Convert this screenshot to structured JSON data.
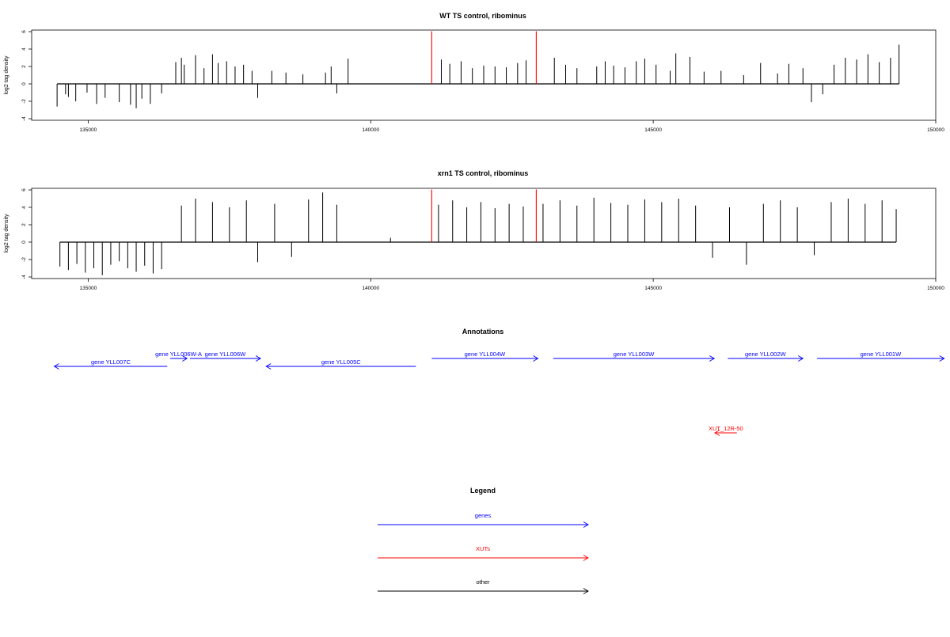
{
  "colors": {
    "gene": "#0000ff",
    "xut": "#ff0000",
    "other": "#000000",
    "bars": "#000000",
    "marker": "#ff0000"
  },
  "chart_data": [
    {
      "type": "bar",
      "title": "WT TS control, ribominus",
      "ylabel": "log2 tag density",
      "xlim": [
        134000,
        150000
      ],
      "ylim": [
        -4,
        6
      ],
      "x_ticks": [
        "135000",
        "140000",
        "145000",
        "150000"
      ],
      "y_ticks": [
        "-4",
        "-2",
        "0",
        "2",
        "4",
        "6"
      ],
      "marker_positions": [
        141080,
        142930
      ],
      "grid": false,
      "series": [
        {
          "x": [
            134450,
            134600,
            134650,
            134780,
            134980,
            135150,
            135300,
            135550,
            135750,
            135850,
            135950,
            136100,
            136300,
            136550,
            136650,
            136700,
            136900,
            137050,
            137200,
            137300,
            137450,
            137600,
            137750,
            137900,
            138000,
            138250,
            138500,
            138800,
            139200,
            139300,
            139400,
            139600,
            141250,
            141400,
            141600,
            141800,
            142000,
            142200,
            142400,
            142600,
            142750,
            143250,
            143450,
            143650,
            144000,
            144150,
            144300,
            144500,
            144700,
            144850,
            145050,
            145300,
            145400,
            145650,
            145900,
            146200,
            146600,
            146900,
            147200,
            147400,
            147650,
            147800,
            148000,
            148200,
            148400,
            148600,
            148800,
            149000,
            149200,
            149350
          ],
          "y": [
            -2.6,
            -1.2,
            -1.5,
            -2.0,
            -1.0,
            -2.3,
            -1.6,
            -2.1,
            -2.4,
            -2.8,
            -1.7,
            -2.3,
            -1.1,
            2.5,
            3.0,
            2.2,
            3.3,
            1.8,
            3.4,
            2.4,
            2.6,
            2.0,
            2.2,
            1.5,
            -1.6,
            1.5,
            1.3,
            1.1,
            1.3,
            2.0,
            -1.1,
            2.9,
            2.8,
            2.3,
            2.6,
            1.8,
            2.1,
            2.0,
            1.9,
            2.4,
            2.7,
            3.0,
            2.2,
            1.8,
            2.0,
            2.6,
            2.1,
            1.9,
            2.6,
            2.9,
            2.2,
            1.5,
            3.5,
            3.1,
            1.4,
            1.5,
            1.0,
            2.4,
            1.2,
            2.3,
            1.8,
            -2.1,
            -1.2,
            2.2,
            3.0,
            2.8,
            3.4,
            2.5,
            3.0,
            4.5
          ]
        }
      ]
    },
    {
      "type": "bar",
      "title": "xrn1 TS control, ribominus",
      "ylabel": "log2 tag density",
      "xlim": [
        134000,
        150000
      ],
      "ylim": [
        -4,
        6
      ],
      "x_ticks": [
        "135000",
        "140000",
        "145000",
        "150000"
      ],
      "y_ticks": [
        "-4",
        "-2",
        "0",
        "2",
        "4",
        "6"
      ],
      "marker_positions": [
        141080,
        142930
      ],
      "grid": false,
      "series": [
        {
          "x": [
            134500,
            134650,
            134800,
            134950,
            135100,
            135250,
            135400,
            135550,
            135700,
            135850,
            136000,
            136150,
            136300,
            136650,
            136900,
            137200,
            137500,
            137800,
            138000,
            138300,
            138600,
            138900,
            139150,
            139400,
            140350,
            141200,
            141450,
            141700,
            141950,
            142200,
            142450,
            142700,
            143050,
            143350,
            143650,
            143950,
            144250,
            144550,
            144850,
            145150,
            145450,
            145750,
            146050,
            146350,
            146650,
            146950,
            147250,
            147550,
            147850,
            148150,
            148450,
            148750,
            149050,
            149300
          ],
          "y": [
            -2.8,
            -3.2,
            -2.5,
            -3.5,
            -3.0,
            -3.8,
            -2.6,
            -2.2,
            -3.0,
            -3.4,
            -2.7,
            -3.6,
            -3.1,
            4.2,
            5.0,
            4.6,
            4.0,
            4.8,
            -2.3,
            4.4,
            -1.7,
            4.9,
            5.7,
            4.3,
            0.5,
            4.3,
            4.8,
            4.0,
            4.6,
            3.9,
            4.4,
            4.1,
            4.4,
            4.8,
            4.2,
            5.1,
            4.5,
            4.3,
            4.9,
            4.6,
            5.0,
            4.2,
            -1.8,
            4.0,
            -2.6,
            4.4,
            4.8,
            4.0,
            -1.5,
            4.6,
            5.0,
            4.4,
            4.8,
            3.8
          ]
        }
      ]
    }
  ],
  "annotations": {
    "title": "Annotations",
    "xlim": [
      134000,
      150000
    ],
    "features": [
      {
        "label": "gene YLL007C",
        "kind": "gene",
        "strand": "-",
        "start": 134400,
        "end": 136400,
        "row": 1
      },
      {
        "label": "gene YLL006W-A",
        "kind": "gene",
        "strand": "+",
        "start": 136450,
        "end": 136750,
        "row": 0
      },
      {
        "label": "gene YLL006W",
        "kind": "gene",
        "strand": "+",
        "start": 136800,
        "end": 138050,
        "row": 0
      },
      {
        "label": "gene YLL005C",
        "kind": "gene",
        "strand": "-",
        "start": 138150,
        "end": 140800,
        "row": 1
      },
      {
        "label": "gene YLL004W",
        "kind": "gene",
        "strand": "+",
        "start": 141080,
        "end": 142960,
        "row": 0
      },
      {
        "label": "gene YLL003W",
        "kind": "gene",
        "strand": "+",
        "start": 143230,
        "end": 146080,
        "row": 0
      },
      {
        "label": "gene YLL002W",
        "kind": "gene",
        "strand": "+",
        "start": 146320,
        "end": 147650,
        "row": 0
      },
      {
        "label": "gene YLL001W",
        "kind": "gene",
        "strand": "+",
        "start": 147900,
        "end": 150150,
        "row": 0
      },
      {
        "label": "XUT_12R-50",
        "kind": "xut",
        "strand": "-",
        "start": 146090,
        "end": 146480,
        "row": 2
      }
    ]
  },
  "legend": {
    "title": "Legend",
    "items": [
      {
        "label": "genes",
        "kind": "gene"
      },
      {
        "label": "XUTs",
        "kind": "xut"
      },
      {
        "label": "other",
        "kind": "other"
      }
    ]
  }
}
